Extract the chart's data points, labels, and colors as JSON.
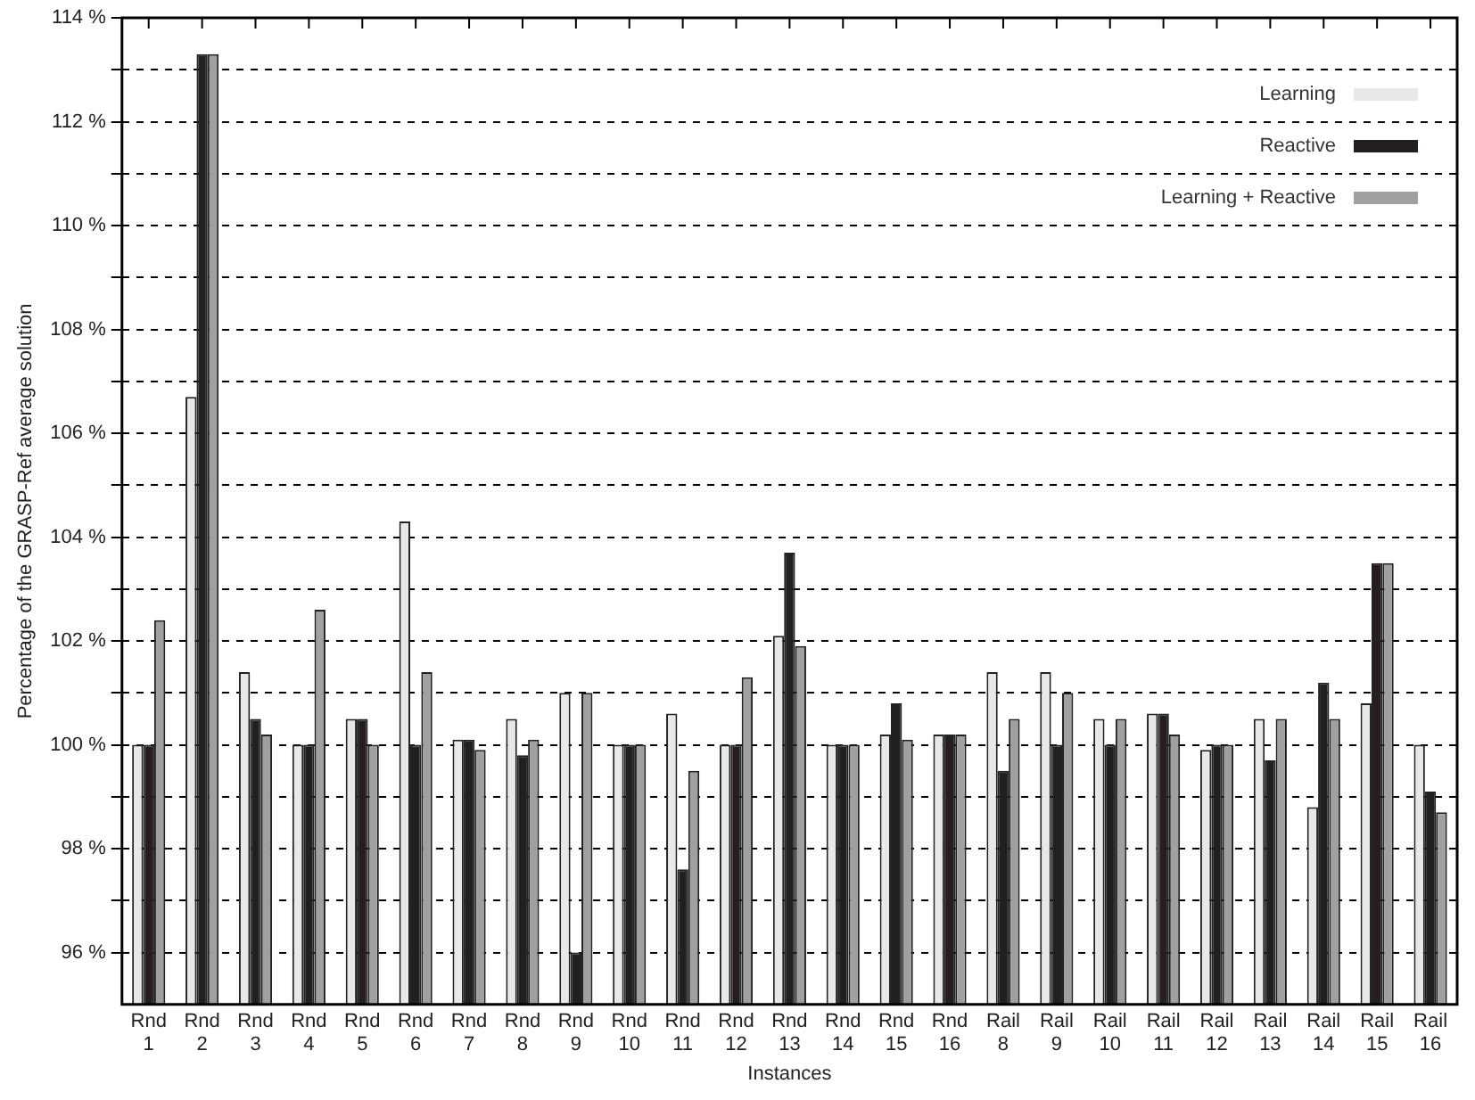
{
  "chart_data": {
    "type": "bar",
    "xlabel": "Instances",
    "ylabel": "Percentage of the GRASP-Ref average solution",
    "categories": [
      "Rnd 1",
      "Rnd 2",
      "Rnd 3",
      "Rnd 4",
      "Rnd 5",
      "Rnd 6",
      "Rnd 7",
      "Rnd 8",
      "Rnd 9",
      "Rnd 10",
      "Rnd 11",
      "Rnd 12",
      "Rnd 13",
      "Rnd 14",
      "Rnd 15",
      "Rnd 16",
      "Rail 8",
      "Rail 9",
      "Rail 10",
      "Rail 11",
      "Rail 12",
      "Rail 13",
      "Rail 14",
      "Rail 15",
      "Rail 16"
    ],
    "series": [
      {
        "name": "Learning",
        "color": "#e8e8e8",
        "values": [
          100,
          106.7,
          101.4,
          100,
          100.5,
          104.3,
          100.1,
          100.5,
          101,
          100,
          100.6,
          100,
          102.1,
          100,
          100.2,
          100.2,
          101.4,
          101.4,
          100.5,
          100.6,
          99.9,
          100.5,
          98.8,
          100.8,
          100
        ]
      },
      {
        "name": "Reactive",
        "color": "#231f20",
        "values": [
          100,
          113.3,
          100.5,
          100,
          100.5,
          100,
          100.1,
          99.8,
          96,
          100,
          97.6,
          100,
          103.7,
          100,
          100.8,
          100.2,
          99.5,
          100,
          100,
          100.6,
          100,
          99.7,
          101.2,
          103.5,
          99.1
        ]
      },
      {
        "name": "Learning + Reactive",
        "color": "#a0a0a0",
        "values": [
          102.4,
          113.3,
          100.2,
          102.6,
          100,
          101.4,
          99.9,
          100.1,
          101,
          100,
          99.5,
          101.3,
          101.9,
          100,
          100.1,
          100.2,
          100.5,
          101,
          100.5,
          100.2,
          100,
          100.5,
          100.5,
          103.5,
          98.7
        ]
      }
    ],
    "ylim": [
      95,
      114
    ],
    "yticks": [
      {
        "value": 96,
        "label": "96 %"
      },
      {
        "value": 97,
        "label": null
      },
      {
        "value": 98,
        "label": "98 %"
      },
      {
        "value": 99,
        "label": null
      },
      {
        "value": 100,
        "label": "100 %"
      },
      {
        "value": 101,
        "label": null
      },
      {
        "value": 102,
        "label": "102 %"
      },
      {
        "value": 103,
        "label": null
      },
      {
        "value": 104,
        "label": "104 %"
      },
      {
        "value": 105,
        "label": null
      },
      {
        "value": 106,
        "label": "106 %"
      },
      {
        "value": 107,
        "label": null
      },
      {
        "value": 108,
        "label": "108 %"
      },
      {
        "value": 109,
        "label": null
      },
      {
        "value": 110,
        "label": "110 %"
      },
      {
        "value": 111,
        "label": null
      },
      {
        "value": 112,
        "label": "112 %"
      },
      {
        "value": 113,
        "label": null
      },
      {
        "value": 114,
        "label": "114 %"
      }
    ],
    "grid": "y",
    "legend": "top right"
  }
}
